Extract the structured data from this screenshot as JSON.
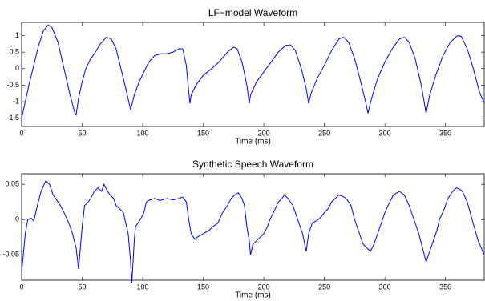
{
  "chart_data": [
    {
      "type": "line",
      "title": "LF−model Waveform",
      "x_label": "Time (ms)",
      "xlim": [
        0,
        382
      ],
      "xticks": [
        0,
        50,
        100,
        150,
        200,
        250,
        300,
        350
      ],
      "ylim": [
        -1.75,
        1.4
      ],
      "yticks": [
        -1.5,
        -1,
        -0.5,
        0,
        0.5,
        1
      ],
      "x": [
        0,
        3,
        6,
        10,
        14,
        18,
        22,
        25,
        30,
        35,
        40,
        44,
        45,
        47,
        50,
        53,
        57,
        61,
        65,
        70,
        74,
        78,
        82,
        86,
        90,
        93,
        97,
        101,
        105,
        110,
        115,
        120,
        125,
        130,
        133,
        136,
        138,
        139,
        140,
        144,
        150,
        157,
        163,
        170,
        175,
        178,
        182,
        186,
        188,
        189,
        194,
        200,
        206,
        212,
        218,
        222,
        226,
        231,
        235,
        237,
        239,
        244,
        250,
        256,
        262,
        266,
        270,
        275,
        280,
        284,
        286,
        289,
        294,
        300,
        306,
        312,
        316,
        320,
        325,
        330,
        334,
        337,
        342,
        348,
        354,
        360,
        363,
        368,
        373,
        378,
        382
      ],
      "series": [
        {
          "color": "#0000ff",
          "values": [
            -1.5,
            -1.0,
            -0.5,
            0.1,
            0.7,
            1.15,
            1.32,
            1.25,
            0.8,
            0.0,
            -0.8,
            -1.35,
            -1.4,
            -0.9,
            -0.4,
            0.0,
            0.3,
            0.5,
            0.75,
            0.95,
            0.9,
            0.6,
            0.0,
            -0.6,
            -1.25,
            -0.8,
            -0.4,
            -0.1,
            0.2,
            0.4,
            0.45,
            0.45,
            0.5,
            0.6,
            0.6,
            0.1,
            -0.7,
            -1.05,
            -0.8,
            -0.5,
            -0.2,
            0.0,
            0.2,
            0.5,
            0.65,
            0.6,
            0.2,
            -0.5,
            -1.05,
            -0.8,
            -0.4,
            -0.1,
            0.2,
            0.5,
            0.7,
            0.72,
            0.55,
            0.0,
            -0.6,
            -1.05,
            -0.75,
            -0.3,
            0.1,
            0.55,
            0.9,
            0.95,
            0.8,
            0.3,
            -0.4,
            -1.0,
            -1.35,
            -0.9,
            -0.3,
            0.2,
            0.6,
            0.9,
            0.95,
            0.8,
            0.3,
            -0.5,
            -1.35,
            -0.8,
            -0.2,
            0.4,
            0.8,
            1.0,
            0.98,
            0.6,
            0.0,
            -0.7,
            -1.05
          ]
        }
      ]
    },
    {
      "type": "line",
      "title": "Synthetic Speech Waveform",
      "x_label": "Time (ms)",
      "xlim": [
        0,
        382
      ],
      "xticks": [
        0,
        50,
        100,
        150,
        200,
        250,
        300,
        350
      ],
      "ylim": [
        -0.086,
        0.065
      ],
      "yticks": [
        -0.05,
        0,
        0.05
      ],
      "x": [
        0,
        3,
        5,
        8,
        10,
        13,
        16,
        20,
        23,
        26,
        28,
        32,
        35,
        39,
        42,
        45,
        47,
        50,
        52,
        55,
        57,
        60,
        63,
        66,
        68,
        71,
        73,
        76,
        78,
        81,
        84,
        86,
        88,
        90,
        91,
        93,
        94,
        96,
        98,
        101,
        103,
        106,
        110,
        114,
        120,
        125,
        130,
        133,
        136,
        138,
        140,
        143,
        145,
        150,
        155,
        158,
        162,
        166,
        170,
        173,
        176,
        179,
        182,
        184,
        186,
        188,
        189,
        191,
        194,
        197,
        200,
        203,
        205,
        208,
        212,
        215,
        217,
        220,
        224,
        226,
        228,
        232,
        235,
        237,
        240,
        243,
        245,
        248,
        250,
        253,
        256,
        259,
        262,
        265,
        268,
        272,
        275,
        279,
        282,
        285,
        288,
        291,
        294,
        297,
        300,
        304,
        307,
        310,
        312,
        316,
        320,
        324,
        328,
        331,
        334,
        337,
        340,
        343,
        345,
        349,
        352,
        356,
        359,
        362,
        364,
        368,
        372,
        377,
        382
      ],
      "series": [
        {
          "color": "#0000ff",
          "values": [
            -0.075,
            -0.02,
            0.0,
            0.002,
            -0.002,
            0.02,
            0.04,
            0.055,
            0.05,
            0.035,
            0.03,
            0.02,
            0.01,
            -0.005,
            -0.02,
            -0.04,
            -0.07,
            -0.01,
            0.02,
            0.025,
            0.03,
            0.04,
            0.045,
            0.04,
            0.05,
            0.04,
            0.035,
            0.03,
            0.02,
            0.015,
            0.01,
            -0.005,
            -0.02,
            -0.06,
            -0.09,
            -0.03,
            -0.01,
            -0.005,
            0.0,
            0.01,
            0.025,
            0.028,
            0.03,
            0.027,
            0.03,
            0.028,
            0.03,
            0.032,
            0.025,
            0.0,
            -0.02,
            -0.028,
            -0.025,
            -0.02,
            -0.015,
            -0.01,
            -0.005,
            0.01,
            0.02,
            0.03,
            0.035,
            0.038,
            0.03,
            0.02,
            -0.01,
            -0.03,
            -0.05,
            -0.035,
            -0.03,
            -0.025,
            -0.02,
            -0.01,
            0.0,
            0.01,
            0.025,
            0.03,
            0.035,
            0.03,
            0.02,
            0.01,
            0.0,
            -0.02,
            -0.045,
            -0.02,
            -0.005,
            -0.002,
            0.0,
            0.005,
            0.01,
            0.015,
            0.025,
            0.03,
            0.035,
            0.033,
            0.03,
            0.02,
            0.0,
            -0.02,
            -0.035,
            -0.04,
            -0.045,
            -0.035,
            -0.02,
            -0.005,
            0.01,
            0.025,
            0.035,
            0.038,
            0.04,
            0.035,
            0.02,
            0.0,
            -0.02,
            -0.04,
            -0.06,
            -0.045,
            -0.03,
            -0.015,
            0.0,
            0.015,
            0.03,
            0.04,
            0.045,
            0.043,
            0.04,
            0.025,
            0.0,
            -0.03,
            -0.05
          ]
        }
      ]
    }
  ]
}
